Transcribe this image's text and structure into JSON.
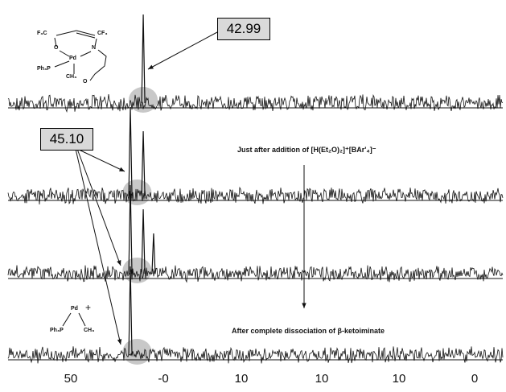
{
  "chart_data": {
    "type": "line",
    "title": "",
    "xlabel": "",
    "ylabel": "",
    "x_tick_labels_bottom": [
      "50",
      "-0",
      "10",
      "10",
      "10",
      "0"
    ],
    "series": [
      {
        "peaks_ppm": [
          42.99
        ]
      },
      {
        "peaks_ppm": [
          45.1,
          42.99
        ]
      },
      {
        "peaks_ppm": [
          45.1,
          42.99,
          41.3
        ]
      },
      {
        "peaks_ppm": [
          45.1
        ]
      }
    ]
  },
  "annotations": {
    "callout_top": "42.99",
    "callout_left": "45.10",
    "caption_middle_prefix": "Just after addition of",
    "caption_middle_reagent": "[H(Et₂O)₂]⁺[BAr'₄]⁻",
    "caption_bottom": "After complete dissociation of β-ketoiminate"
  },
  "structure_top": {
    "labels": [
      "F₃C",
      "CF₃",
      "O",
      "N",
      "Pd",
      "Ph₃P",
      "CH₃",
      "O"
    ]
  },
  "structure_bottom": {
    "labels": [
      "Pd",
      "+",
      "Ph₃P",
      "CH₃"
    ]
  },
  "colors": {
    "trace": "#111111",
    "highlight": "#9a9a9a",
    "box": "#d9d9d9"
  }
}
